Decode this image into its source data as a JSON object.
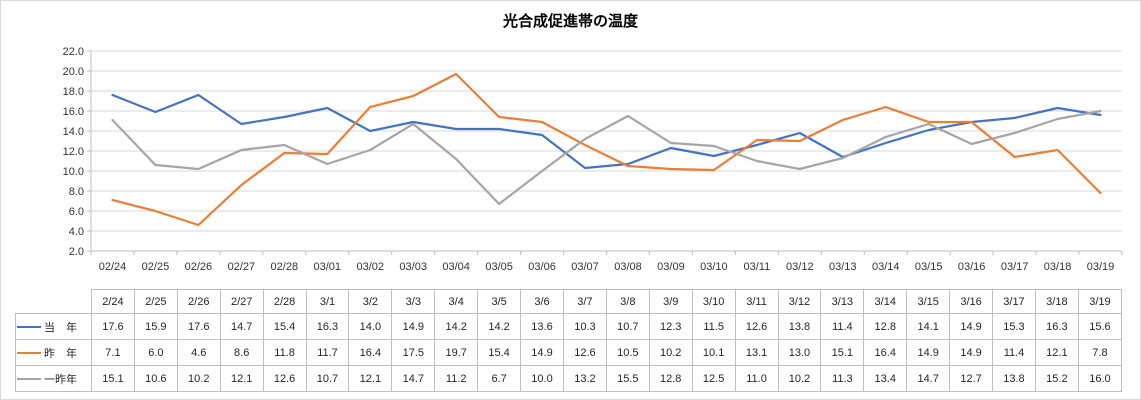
{
  "title": "光合成促進帯の温度",
  "chart_data": {
    "type": "line",
    "title": "光合成促進帯の温度",
    "x_labels": [
      "02/24",
      "02/25",
      "02/26",
      "02/27",
      "02/28",
      "03/01",
      "03/02",
      "03/03",
      "03/04",
      "03/05",
      "03/06",
      "03/07",
      "03/08",
      "03/09",
      "03/10",
      "03/11",
      "03/12",
      "03/13",
      "03/14",
      "03/15",
      "03/16",
      "03/17",
      "03/18",
      "03/19"
    ],
    "table_headers": [
      "2/24",
      "2/25",
      "2/26",
      "2/27",
      "2/28",
      "3/1",
      "3/2",
      "3/3",
      "3/4",
      "3/5",
      "3/6",
      "3/7",
      "3/8",
      "3/9",
      "3/10",
      "3/11",
      "3/12",
      "3/13",
      "3/14",
      "3/15",
      "3/16",
      "3/17",
      "3/18",
      "3/19"
    ],
    "ylim": [
      2.0,
      22.0
    ],
    "ytick_step": 2.0,
    "ytick_labels": [
      "22.0",
      "20.0",
      "18.0",
      "16.0",
      "14.0",
      "12.0",
      "10.0",
      "8.0",
      "6.0",
      "4.0",
      "2.0"
    ],
    "grid": true,
    "legend_position": "table-left",
    "series": [
      {
        "name": "当　年",
        "color": "#4472C4",
        "values": [
          17.6,
          15.9,
          17.6,
          14.7,
          15.4,
          16.3,
          14.0,
          14.9,
          14.2,
          14.2,
          13.6,
          10.3,
          10.7,
          12.3,
          11.5,
          12.6,
          13.8,
          11.4,
          12.8,
          14.1,
          14.9,
          15.3,
          16.3,
          15.6
        ]
      },
      {
        "name": "昨　年",
        "color": "#ED7D31",
        "values": [
          7.1,
          6.0,
          4.6,
          8.6,
          11.8,
          11.7,
          16.4,
          17.5,
          19.7,
          15.4,
          14.9,
          12.6,
          10.5,
          10.2,
          10.1,
          13.1,
          13.0,
          15.1,
          16.4,
          14.9,
          14.9,
          11.4,
          12.1,
          7.8
        ]
      },
      {
        "name": "一昨年",
        "color": "#A5A5A5",
        "values": [
          15.1,
          10.6,
          10.2,
          12.1,
          12.6,
          10.7,
          12.1,
          14.7,
          11.2,
          6.7,
          10.0,
          13.2,
          15.5,
          12.8,
          12.5,
          11.0,
          10.2,
          11.3,
          13.4,
          14.7,
          12.7,
          13.8,
          15.2,
          16.0
        ]
      }
    ],
    "colors": {
      "gridline": "#D9D9D9",
      "axis": "#BFBFBF",
      "table_border": "#BFBFBF",
      "axis_text": "#333333",
      "table_text": "#262626",
      "background": "#FFFFFF"
    }
  }
}
